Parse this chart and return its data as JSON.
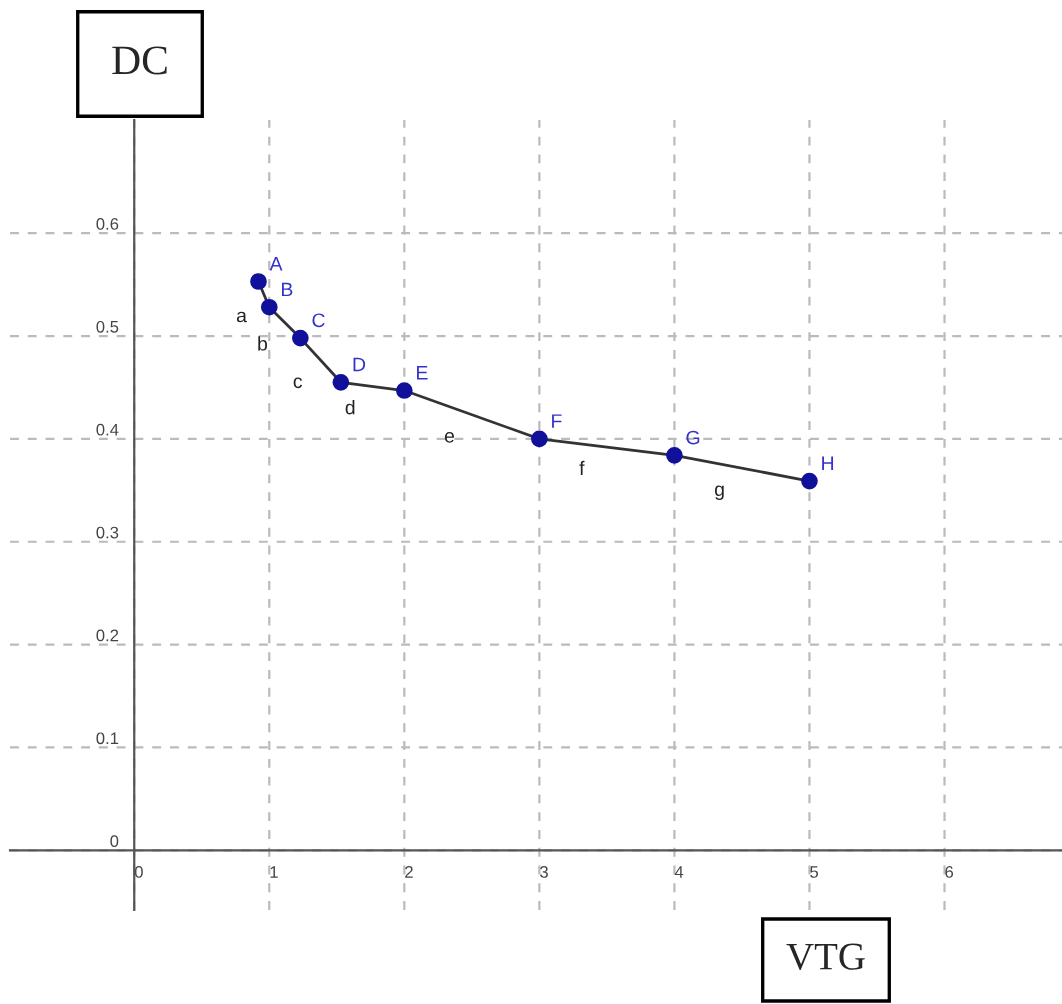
{
  "chart_data": {
    "type": "line",
    "title": "DC",
    "xlabel": "VTG",
    "x": [
      0.92,
      1.0,
      1.23,
      1.53,
      2.0,
      3.0,
      4.0,
      5.0
    ],
    "series": [
      {
        "color": "#333333",
        "values": [
          0.553,
          0.528,
          0.498,
          0.455,
          0.447,
          0.4,
          0.384,
          0.359
        ]
      }
    ],
    "marker": "circle",
    "line_style": "solid",
    "grid": true,
    "xlim": [
      -0.92,
      6.87
    ],
    "ylim": [
      -0.058,
      0.71
    ],
    "xticks": [
      0,
      1,
      2,
      3,
      4,
      5,
      6
    ],
    "yticks": [
      0,
      0.1,
      0.2,
      0.3,
      0.4,
      0.5,
      0.6
    ],
    "annotations": [
      {
        "text": "A",
        "x": 0.92,
        "y": 0.553
      },
      {
        "text": "B",
        "x": 1.0,
        "y": 0.528
      },
      {
        "text": "C",
        "x": 1.23,
        "y": 0.498
      },
      {
        "text": "D",
        "x": 1.53,
        "y": 0.455
      },
      {
        "text": "E",
        "x": 2.0,
        "y": 0.447
      },
      {
        "text": "F",
        "x": 3.0,
        "y": 0.4
      },
      {
        "text": "G",
        "x": 4.0,
        "y": 0.384
      },
      {
        "text": "H",
        "x": 5.0,
        "y": 0.359
      },
      "a",
      "b",
      "c",
      "d",
      "e",
      "f",
      "g"
    ]
  }
}
